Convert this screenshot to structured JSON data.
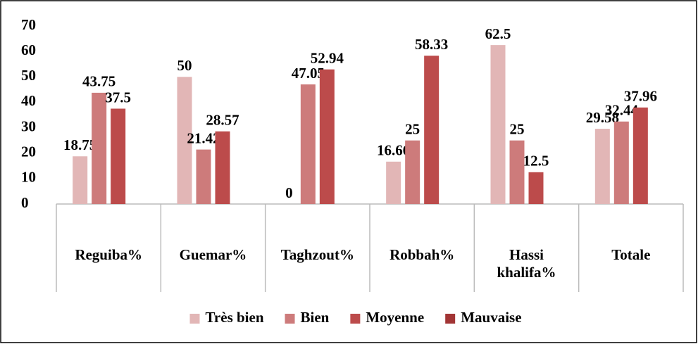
{
  "chart_data": {
    "type": "bar",
    "categories": [
      "Reguiba%",
      "Guemar%",
      "Taghzout%",
      "Robbah%",
      "Hassi khalifa%",
      "Totale"
    ],
    "series": [
      {
        "name": "Très bien",
        "color": "#e2b6b6",
        "values": [
          18.75,
          50,
          0,
          16.66,
          62.5,
          29.58
        ]
      },
      {
        "name": "Bien",
        "color": "#cd7b7b",
        "values": [
          43.75,
          21.42,
          47.05,
          25,
          25,
          32.44
        ]
      },
      {
        "name": "Moyenne",
        "color": "#bc4b4b",
        "values": [
          37.5,
          28.57,
          52.94,
          58.33,
          12.5,
          37.96
        ]
      },
      {
        "name": "Mauvaise",
        "color": "#a23535",
        "values": [
          null,
          null,
          null,
          null,
          null,
          null
        ]
      }
    ],
    "ylim": [
      0,
      70
    ],
    "yticks": [
      0,
      10,
      20,
      30,
      40,
      50,
      60,
      70
    ],
    "grid": false,
    "legend": "bottom"
  }
}
